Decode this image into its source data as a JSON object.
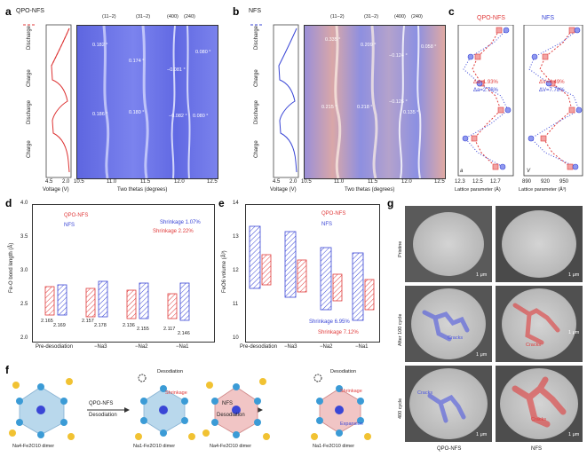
{
  "panels": {
    "a": "a",
    "b": "b",
    "c": "c",
    "d": "d",
    "e": "e",
    "f": "f",
    "g": "g"
  },
  "a": {
    "legend": "QPO-NFS",
    "peaks": [
      "(11−2)",
      "(31−2)",
      "(400)",
      "(240)"
    ],
    "x_axis_label": "Two thetas (degrees)",
    "x_ticks": [
      "10.5",
      "11.0",
      "11.5",
      "12.0",
      "12.5"
    ],
    "v_axis_label": "Voltage (V)",
    "v_ticks": [
      "4.5",
      "2.0"
    ],
    "stages": [
      "Discharge",
      "Charge",
      "Discharge",
      "Charge"
    ],
    "shifts": [
      "0.182 °",
      "0.174 °",
      "−0.081 °",
      "0.080 °",
      "0.186 °",
      "0.180 °",
      "−0.082 °",
      "0.080 °"
    ]
  },
  "b": {
    "legend": "NFS",
    "peaks": [
      "(11−2)",
      "(31−2)",
      "(400)",
      "(240)"
    ],
    "x_axis_label": "Two thetas (degrees)",
    "x_ticks": [
      "10.5",
      "11.0",
      "11.5",
      "12.0",
      "12.5"
    ],
    "v_axis_label": "Voltage (V)",
    "v_ticks": [
      "4.5",
      "2.0"
    ],
    "stages": [
      "Discharge",
      "Charge",
      "Discharge",
      "Charge"
    ],
    "shifts": [
      "0.335 °",
      "0.209 °",
      "−0.124 °",
      "0.058 °",
      "0.215 °",
      "0.218 °",
      "−0.126 °",
      "0.135 °"
    ]
  },
  "c": {
    "legend_qpo": "QPO-NFS",
    "legend_nfs": "NFS",
    "left_ticks": [
      "12.3",
      "12.5",
      "12.7"
    ],
    "right_ticks": [
      "890",
      "920",
      "950"
    ],
    "left_xlabel": "Lattice parameter (Å)",
    "right_xlabel": "Lattice parameter (Å³)",
    "left_tag": "a",
    "right_tag": "V",
    "delta_a_qpo": "Δa=1.93%",
    "delta_a_nfs": "Δa=2.76%",
    "delta_v_qpo": "ΔV=4.49%",
    "delta_v_nfs": "ΔV=7.78%"
  },
  "d": {
    "ylabel": "Fe-O bond length (Å)",
    "y_ticks": [
      "2.0",
      "2.5",
      "3.0",
      "3.5",
      "4.0"
    ],
    "categories": [
      "Pre-desodiation",
      "−Na3",
      "−Na2",
      "−Na1"
    ],
    "legend_qpo": "QPO-NFS",
    "legend_nfs": "NFS",
    "shrink_nfs": "Shrinkage 1.07%",
    "shrink_qpo": "Shrinkage 2.22%",
    "labels": [
      "2.165",
      "2.169",
      "2.157",
      "2.178",
      "2.136",
      "2.155",
      "2.117",
      "2.146"
    ]
  },
  "e": {
    "ylabel": "FeO6 volume (Å³)",
    "y_ticks": [
      "10",
      "11",
      "12",
      "13",
      "14"
    ],
    "categories": [
      "Pre-desodiation",
      "−Na3",
      "−Na2",
      "−Na1"
    ],
    "legend_qpo": "QPO-NFS",
    "legend_nfs": "NFS",
    "shrink_nfs": "Shrinkage 6.95%",
    "shrink_qpo": "Shrinkage 7.12%"
  },
  "f": {
    "dimer1": "Na4-Fe2O10 dimer",
    "dimer2": "Na1-Fe2O10 dimer",
    "dimer3": "Na4-Fe2O10 dimer",
    "dimer4": "Na1-Fe2O10 dimer",
    "arrow1_top": "QPO-NFS",
    "arrow1_bottom": "Desodiation",
    "arrow2_top": "NFS",
    "arrow2_bottom": "Desodiation",
    "desodiation": "Desodiation",
    "shrinkage": "Shrinkage",
    "expansion": "Expansion"
  },
  "g": {
    "rows": [
      "Pristine",
      "After 100 cycle",
      "400 cycle"
    ],
    "cols": [
      "QPO-NFS",
      "NFS"
    ],
    "cracks": "Cracks",
    "scale": "1 μm"
  },
  "colors": {
    "red": "#e03a3a",
    "blue": "#3a46d6",
    "xrd_bg": "#6a72e6"
  }
}
